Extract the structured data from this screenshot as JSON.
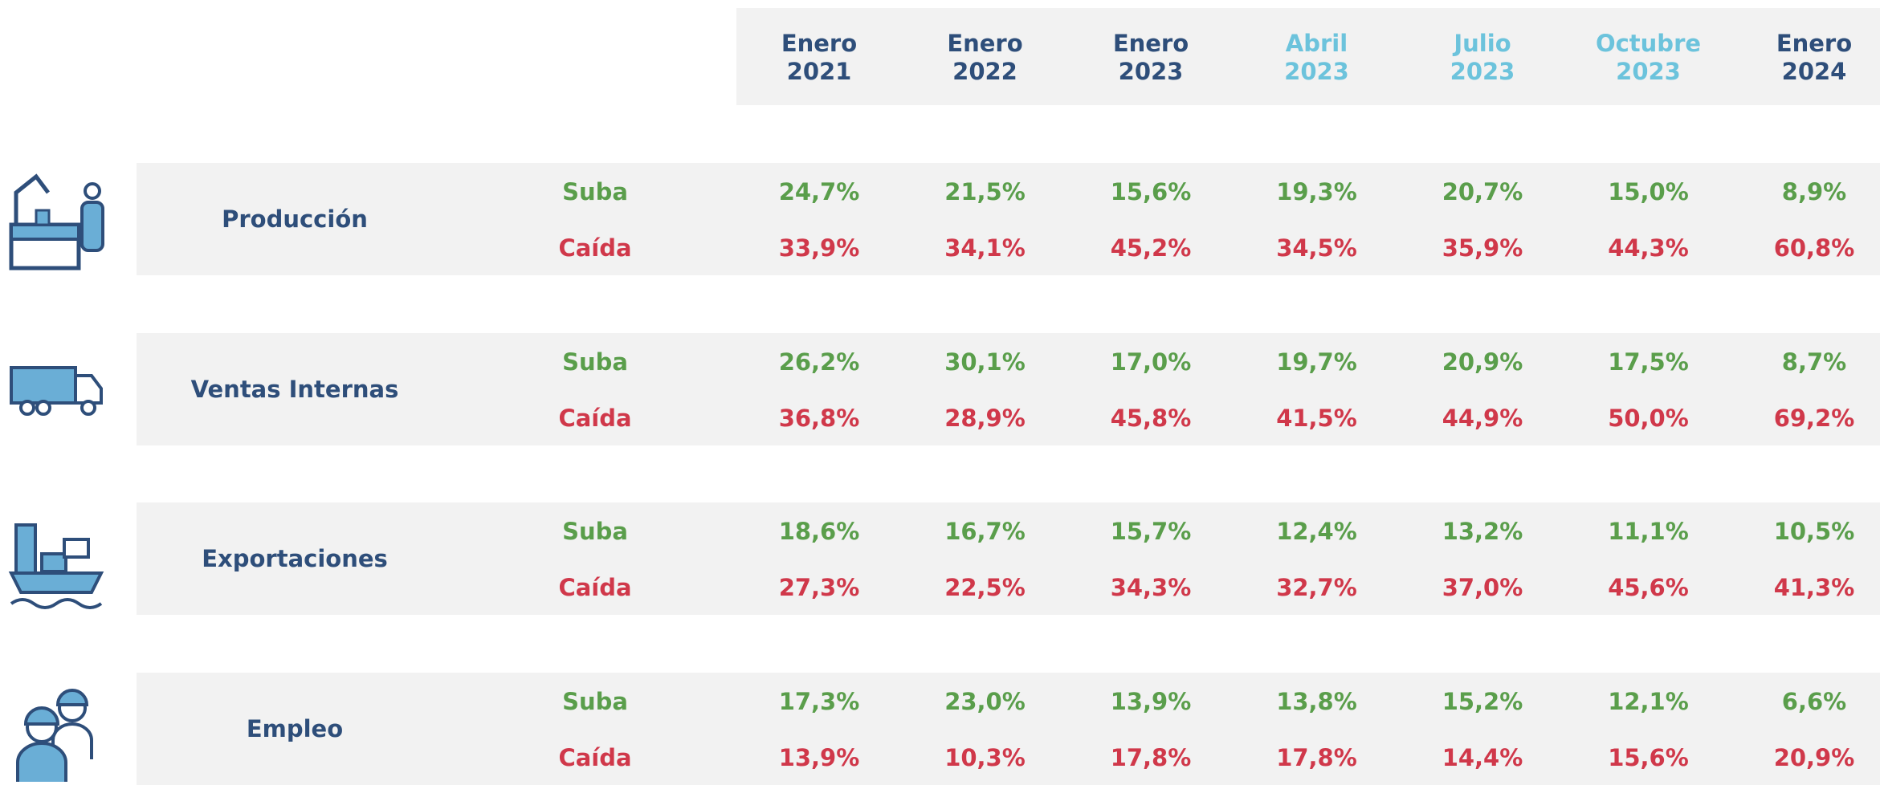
{
  "columns": [
    {
      "month": "Enero",
      "year": "2021"
    },
    {
      "month": "Enero",
      "year": "2022"
    },
    {
      "month": "Enero",
      "year": "2023"
    },
    {
      "month": "Abril",
      "year": "2023"
    },
    {
      "month": "Julio",
      "year": "2023"
    },
    {
      "month": "Octubre",
      "year": "2023"
    },
    {
      "month": "Enero",
      "year": "2024"
    }
  ],
  "sections": [
    {
      "label": "Producción",
      "rows": [
        {
          "label": "Suba",
          "values": [
            "24,7%",
            "21,5%",
            "15,6%",
            "19,3%",
            "20,7%",
            "15,0%",
            "8,9%"
          ]
        },
        {
          "label": "Caída",
          "values": [
            "33,9%",
            "34,1%",
            "45,2%",
            "34,5%",
            "35,9%",
            "44,3%",
            "60,8%"
          ]
        }
      ]
    },
    {
      "label": "Ventas Internas",
      "rows": [
        {
          "label": "Suba",
          "values": [
            "26,2%",
            "30,1%",
            "17,0%",
            "19,7%",
            "20,9%",
            "17,5%",
            "8,7%"
          ]
        },
        {
          "label": "Caída",
          "values": [
            "36,8%",
            "28,9%",
            "45,8%",
            "41,5%",
            "44,9%",
            "50,0%",
            "69,2%"
          ]
        }
      ]
    },
    {
      "label": "Exportaciones",
      "rows": [
        {
          "label": "Suba",
          "values": [
            "18,6%",
            "16,7%",
            "15,7%",
            "12,4%",
            "13,2%",
            "11,1%",
            "10,5%"
          ]
        },
        {
          "label": "Caída",
          "values": [
            "27,3%",
            "22,5%",
            "34,3%",
            "32,7%",
            "37,0%",
            "45,6%",
            "41,3%"
          ]
        }
      ]
    },
    {
      "label": "Empleo",
      "rows": [
        {
          "label": "Suba",
          "values": [
            "17,3%",
            "23,0%",
            "13,9%",
            "13,8%",
            "15,2%",
            "12,1%",
            "6,6%"
          ]
        },
        {
          "label": "Caída",
          "values": [
            "13,9%",
            "10,3%",
            "17,8%",
            "17,8%",
            "14,4%",
            "15,6%",
            "20,9%"
          ]
        }
      ]
    }
  ]
}
